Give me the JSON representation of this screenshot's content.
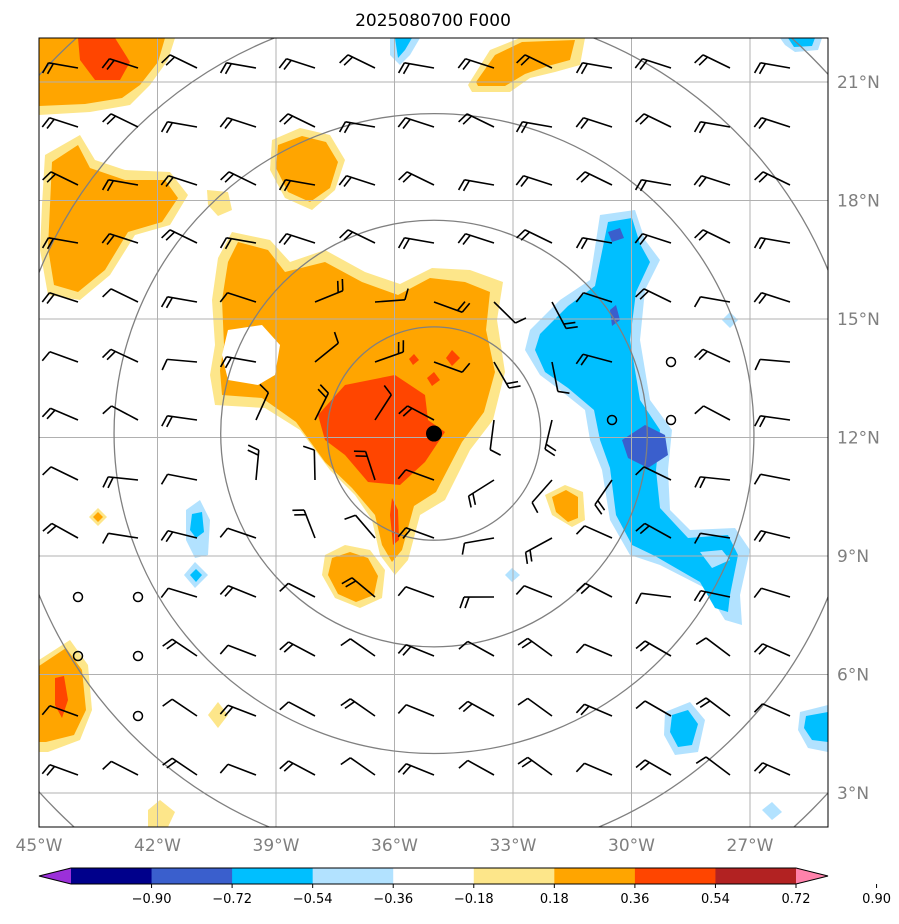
{
  "title": "2025080700 F000",
  "longitude_labels": [
    "45°W",
    "42°W",
    "39°W",
    "36°W",
    "33°W",
    "30°W",
    "27°W"
  ],
  "latitude_labels": [
    "21°N",
    "18°N",
    "15°N",
    "12°N",
    "9°N",
    "6°N",
    "3°N"
  ],
  "colorbar": {
    "levels": [
      "−0.90",
      "−0.72",
      "−0.54",
      "−0.36",
      "−0.18",
      "0.18",
      "0.36",
      "0.54",
      "0.72",
      "0.90"
    ],
    "colors": [
      "#9b30d9",
      "#00008b",
      "#3a5fcd",
      "#00bfff",
      "#b2e2ff",
      "#ffffff",
      "#fde68a",
      "#ffa500",
      "#ff4500",
      "#b22222",
      "#ff82ab"
    ]
  },
  "colors": {
    "pos_light": "#fde68a",
    "pos_mid": "#ffa500",
    "pos_strong": "#ff4500",
    "neg_light": "#b2e2ff",
    "neg_mid": "#00bfff",
    "neg_strong": "#3a5fcd",
    "grid": "#b0b0b0",
    "ring": "#808080"
  },
  "storm_center": {
    "lon": -35,
    "lat": 12.1
  },
  "range_rings_deg": [
    2.7,
    5.4,
    8.1,
    10.8,
    13.5
  ]
}
